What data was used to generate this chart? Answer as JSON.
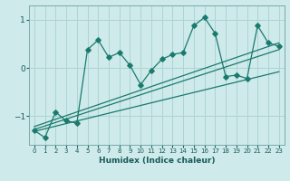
{
  "xlabel": "Humidex (Indice chaleur)",
  "bg_color": "#ceeaea",
  "grid_color": "#aed4d4",
  "line_color": "#1a7a6e",
  "xlim": [
    -0.5,
    23.5
  ],
  "ylim": [
    -1.6,
    1.3
  ],
  "yticks": [
    -1,
    0,
    1
  ],
  "xticks": [
    0,
    1,
    2,
    3,
    4,
    5,
    6,
    7,
    8,
    9,
    10,
    11,
    12,
    13,
    14,
    15,
    16,
    17,
    18,
    19,
    20,
    21,
    22,
    23
  ],
  "line1_x": [
    0,
    1,
    2,
    3,
    4,
    5,
    6,
    7,
    8,
    9,
    10,
    11,
    12,
    13,
    14,
    15,
    16,
    17,
    18,
    19,
    20,
    21,
    22,
    23
  ],
  "line1_y": [
    -1.3,
    -1.45,
    -0.92,
    -1.1,
    -1.15,
    0.38,
    0.58,
    0.22,
    0.32,
    0.05,
    -0.35,
    -0.05,
    0.18,
    0.28,
    0.32,
    0.88,
    1.05,
    0.72,
    -0.18,
    -0.15,
    -0.22,
    0.88,
    0.52,
    0.45
  ],
  "line2_x": [
    0,
    23
  ],
  "line2_y": [
    -1.32,
    -0.08
  ],
  "line3_x": [
    0,
    23
  ],
  "line3_y": [
    -1.28,
    0.38
  ],
  "line4_x": [
    0,
    23
  ],
  "line4_y": [
    -1.22,
    0.52
  ]
}
